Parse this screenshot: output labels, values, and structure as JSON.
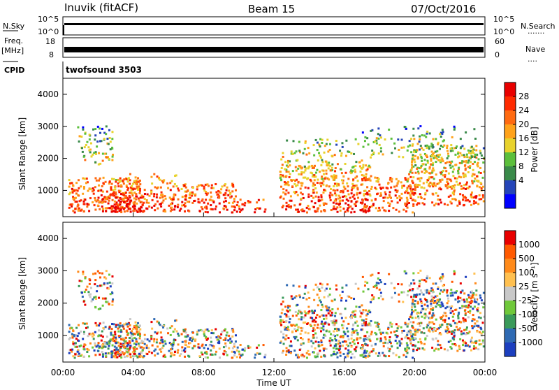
{
  "header": {
    "station": "Inuvik (fitACF)",
    "beam": "Beam 15",
    "date": "07/Oct/2016"
  },
  "strip": {
    "nsky_label": "N.Sky",
    "nsky_ticks": [
      "10^5",
      "10^0"
    ],
    "nsearch_label": "N.Search",
    "nsearch_ticks": [
      "10^5",
      "10^0"
    ],
    "freq_label_1": "Freq.",
    "freq_label_2": "[MHz]",
    "freq_ticks": [
      "18",
      "8"
    ],
    "nave_label": "Nave",
    "nave_ticks": [
      "60",
      "0"
    ],
    "cpid_label": "CPID",
    "cpid_value": "twofsound 3503",
    "dots": "......."
  },
  "panels": {
    "ylabel": "Slant Range [km]",
    "xlabel": "Time UT",
    "xticks": [
      "00:00",
      "04:00",
      "08:00",
      "12:00",
      "16:00",
      "20:00",
      "00:00"
    ],
    "yticks": [
      "1000",
      "2000",
      "3000",
      "4000"
    ]
  },
  "power_scale": {
    "label": "Power [dB]",
    "ticks": [
      "4",
      "8",
      "12",
      "16",
      "20",
      "24",
      "28"
    ],
    "colors": [
      "#0000ff",
      "#2545b8",
      "#3a8a4a",
      "#5cbf3c",
      "#e8d22c",
      "#ffa21a",
      "#ff6a10",
      "#ff2a00",
      "#e80000"
    ]
  },
  "velocity_scale": {
    "label": "Velocity [m s⁻¹]",
    "ticks": [
      "1000",
      "500",
      "100",
      "25",
      "-25",
      "-100",
      "-500",
      "-1000"
    ],
    "colors": [
      "#1c3fbf",
      "#2f6ab3",
      "#3a9a5a",
      "#6fc83a",
      "#c8c8c8",
      "#ffc050",
      "#ff8a1a",
      "#ff5a00",
      "#e80000"
    ]
  },
  "chart_data": [
    {
      "type": "heatmap",
      "title": "Power",
      "xlabel": "Time UT",
      "ylabel": "Slant Range [km]",
      "x_range": [
        "00:00",
        "24:00"
      ],
      "ylim": [
        180,
        4500
      ],
      "colorbar_label": "Power [dB]",
      "colorbar_ticks": [
        4,
        8,
        12,
        16,
        20,
        24,
        28
      ]
    },
    {
      "type": "heatmap",
      "title": "Velocity",
      "xlabel": "Time UT",
      "ylabel": "Slant Range [km]",
      "x_range": [
        "00:00",
        "24:00"
      ],
      "ylim": [
        180,
        4500
      ],
      "colorbar_label": "Velocity [m s-1]",
      "colorbar_ticks": [
        1000,
        500,
        100,
        25,
        -25,
        -100,
        -500,
        -1000
      ]
    }
  ]
}
